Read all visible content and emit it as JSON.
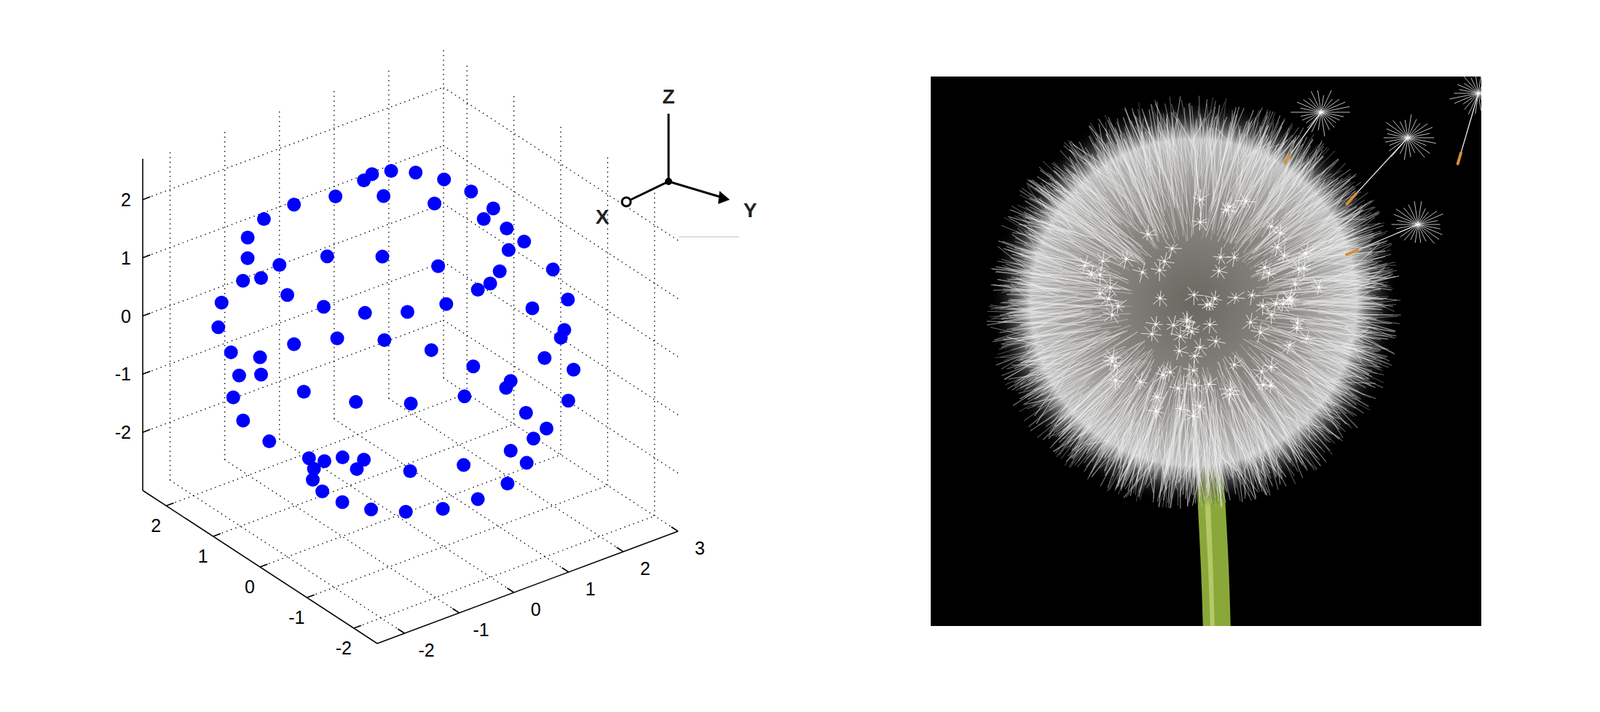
{
  "chart_data": {
    "type": "scatter3d",
    "color": "#0000ff",
    "marker": "circle",
    "grid": true,
    "x": [
      0.7,
      0.84,
      0.83,
      0.68,
      0.39,
      0,
      -0.45,
      -0.9,
      -1.29,
      -1.59,
      -1.73,
      -1.71,
      -1.5,
      -1.12,
      -0.6,
      0,
      0.63,
      1.22,
      1.72,
      2.05,
      2.19,
      2.11,
      1.82,
      1.34,
      0.71,
      0,
      -0.73,
      -1.4,
      -1.93,
      -2.29,
      -2.43,
      -2.32,
      -1.98,
      -1.45,
      -0.76,
      0,
      0.77,
      1.46,
      2.02,
      2.38,
      2.5,
      2.38,
      2.02,
      1.46,
      0.77,
      0,
      -0.76,
      -1.45,
      -1.98,
      -2.32,
      -2.43,
      -2.29,
      -1.93,
      -1.4,
      -0.73,
      0,
      0.71,
      1.34,
      1.82,
      2.11,
      2.19,
      2.05,
      1.72,
      1.22,
      0.63,
      0,
      -0.6,
      -1.12,
      -1.5,
      -1.71,
      -1.73,
      -1.59,
      -1.29,
      -0.9,
      -0.45,
      0,
      0.39,
      0.68,
      0.83,
      0.84,
      0.7
    ],
    "y": [
      0,
      0.27,
      0.61,
      0.93,
      1.2,
      1.36,
      1.38,
      1.24,
      0.94,
      0.52,
      0,
      -0.56,
      -1.09,
      -1.54,
      -1.85,
      -2.0,
      -1.94,
      -1.68,
      -1.25,
      -0.67,
      0,
      0.69,
      1.32,
      1.84,
      2.2,
      2.33,
      2.23,
      1.93,
      1.41,
      0.74,
      0,
      -0.75,
      -1.44,
      -1.99,
      -2.35,
      -2.48,
      -2.37,
      -2.01,
      -1.47,
      -0.77,
      0,
      0.77,
      1.47,
      2.01,
      2.37,
      2.48,
      2.35,
      1.99,
      1.44,
      0.75,
      0,
      -0.74,
      -1.41,
      -1.93,
      -2.23,
      -2.33,
      -2.2,
      -1.84,
      -1.32,
      -0.69,
      0,
      0.67,
      1.25,
      1.68,
      1.94,
      2.0,
      1.85,
      1.54,
      1.09,
      0.56,
      0,
      -0.52,
      -0.94,
      -1.24,
      -1.38,
      -1.36,
      -1.2,
      -0.93,
      -0.61,
      -0.27,
      0
    ],
    "z": [
      2.4,
      2.34,
      2.28,
      2.22,
      2.16,
      2.1,
      2.04,
      1.98,
      1.92,
      1.86,
      1.8,
      1.74,
      1.68,
      1.62,
      1.56,
      1.5,
      1.44,
      1.38,
      1.32,
      1.26,
      1.2,
      1.14,
      1.08,
      1.02,
      0.96,
      0.9,
      0.84,
      0.78,
      0.72,
      0.66,
      0.6,
      0.54,
      0.48,
      0.42,
      0.36,
      0.3,
      0.24,
      0.18,
      0.12,
      0.06,
      0,
      -0.06,
      -0.12,
      -0.18,
      -0.24,
      -0.3,
      -0.36,
      -0.42,
      -0.48,
      -0.54,
      -0.6,
      -0.66,
      -0.72,
      -0.78,
      -0.84,
      -0.9,
      -0.96,
      -1.02,
      -1.08,
      -1.14,
      -1.2,
      -1.26,
      -1.32,
      -1.38,
      -1.44,
      -1.5,
      -1.56,
      -1.62,
      -1.68,
      -1.74,
      -1.8,
      -1.86,
      -1.92,
      -1.98,
      -2.04,
      -2.1,
      -2.16,
      -2.22,
      -2.28,
      -2.34,
      -2.4
    ],
    "xlim": [
      -2.5,
      2.5
    ],
    "xticks": [
      -2,
      -1,
      0,
      1,
      2
    ],
    "ylim": [
      -2.5,
      3
    ],
    "yticks": [
      -2,
      -1,
      0,
      1,
      2,
      3
    ],
    "zlim": [
      -3,
      2.7
    ],
    "zticks": [
      -2,
      -1,
      0,
      1,
      2
    ],
    "annotations": [
      "X",
      "Y",
      "Z"
    ]
  }
}
